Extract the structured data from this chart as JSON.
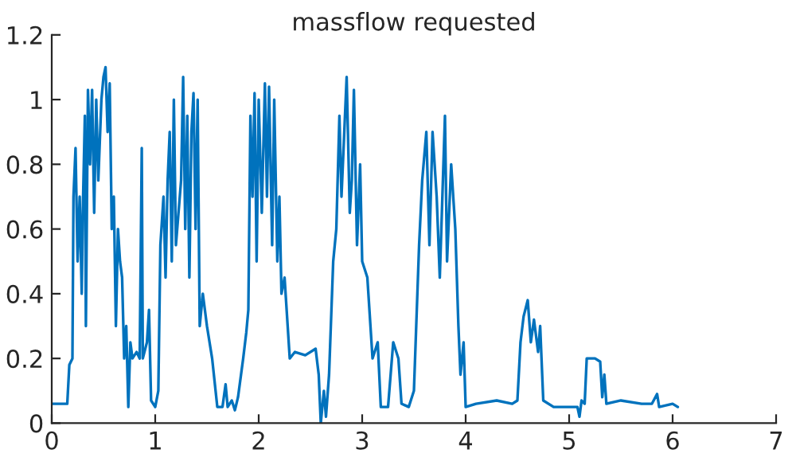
{
  "chart_data": {
    "type": "line",
    "title": "massflow requested",
    "x": [
      0,
      0.15,
      0.17,
      0.2,
      0.21,
      0.23,
      0.25,
      0.27,
      0.29,
      0.3,
      0.32,
      0.33,
      0.35,
      0.37,
      0.39,
      0.41,
      0.43,
      0.45,
      0.48,
      0.5,
      0.52,
      0.54,
      0.56,
      0.58,
      0.6,
      0.62,
      0.64,
      0.66,
      0.68,
      0.7,
      0.72,
      0.74,
      0.76,
      0.78,
      0.82,
      0.85,
      0.87,
      0.88,
      0.92,
      0.94,
      0.96,
      1.0,
      1.03,
      1.05,
      1.08,
      1.1,
      1.12,
      1.14,
      1.16,
      1.18,
      1.2,
      1.25,
      1.27,
      1.29,
      1.31,
      1.33,
      1.35,
      1.37,
      1.39,
      1.41,
      1.43,
      1.46,
      1.5,
      1.55,
      1.6,
      1.65,
      1.68,
      1.7,
      1.74,
      1.77,
      1.8,
      1.85,
      1.88,
      1.9,
      1.92,
      1.94,
      1.96,
      1.98,
      2.0,
      2.03,
      2.06,
      2.08,
      2.1,
      2.13,
      2.15,
      2.18,
      2.2,
      2.22,
      2.25,
      2.3,
      2.35,
      2.45,
      2.55,
      2.58,
      2.6,
      2.63,
      2.65,
      2.68,
      2.72,
      2.75,
      2.78,
      2.8,
      2.85,
      2.88,
      2.9,
      2.92,
      2.95,
      2.98,
      3.0,
      3.05,
      3.1,
      3.15,
      3.18,
      3.25,
      3.3,
      3.35,
      3.38,
      3.45,
      3.5,
      3.55,
      3.58,
      3.62,
      3.65,
      3.68,
      3.72,
      3.75,
      3.8,
      3.82,
      3.86,
      3.9,
      3.93,
      3.95,
      3.98,
      4.0,
      4.1,
      4.3,
      4.45,
      4.5,
      4.53,
      4.56,
      4.6,
      4.63,
      4.66,
      4.7,
      4.72,
      4.75,
      4.85,
      5.0,
      5.08,
      5.1,
      5.12,
      5.15,
      5.17,
      5.25,
      5.3,
      5.32,
      5.34,
      5.36,
      5.5,
      5.7,
      5.8,
      5.85,
      5.87,
      6.0,
      6.05
    ],
    "series": [
      {
        "color": "#0072bd",
        "values": [
          0.06,
          0.06,
          0.18,
          0.2,
          0.7,
          0.85,
          0.5,
          0.7,
          0.4,
          0.65,
          0.95,
          0.3,
          1.03,
          0.8,
          1.03,
          0.65,
          1.0,
          0.75,
          1.0,
          1.07,
          1.1,
          0.9,
          1.05,
          0.6,
          0.7,
          0.3,
          0.6,
          0.5,
          0.45,
          0.2,
          0.3,
          0.05,
          0.25,
          0.2,
          0.22,
          0.2,
          0.85,
          0.2,
          0.25,
          0.35,
          0.07,
          0.05,
          0.1,
          0.55,
          0.7,
          0.45,
          0.75,
          0.9,
          0.5,
          1.0,
          0.55,
          0.75,
          1.07,
          0.6,
          0.95,
          0.45,
          0.9,
          1.02,
          0.6,
          1.0,
          0.3,
          0.4,
          0.3,
          0.2,
          0.05,
          0.05,
          0.12,
          0.05,
          0.07,
          0.04,
          0.08,
          0.2,
          0.28,
          0.35,
          0.95,
          0.7,
          1.02,
          0.5,
          1.0,
          0.65,
          1.05,
          0.7,
          1.04,
          0.55,
          1.0,
          0.5,
          0.7,
          0.4,
          0.45,
          0.2,
          0.22,
          0.21,
          0.23,
          0.15,
          0.0,
          0.1,
          0.02,
          0.15,
          0.5,
          0.6,
          0.95,
          0.7,
          1.07,
          0.65,
          0.75,
          1.03,
          0.55,
          0.8,
          0.5,
          0.45,
          0.2,
          0.25,
          0.05,
          0.05,
          0.25,
          0.2,
          0.06,
          0.05,
          0.1,
          0.55,
          0.75,
          0.9,
          0.55,
          0.9,
          0.7,
          0.45,
          0.95,
          0.5,
          0.8,
          0.6,
          0.3,
          0.15,
          0.25,
          0.05,
          0.06,
          0.07,
          0.06,
          0.07,
          0.25,
          0.33,
          0.38,
          0.25,
          0.32,
          0.22,
          0.3,
          0.07,
          0.05,
          0.05,
          0.05,
          0.02,
          0.07,
          0.06,
          0.2,
          0.2,
          0.19,
          0.08,
          0.15,
          0.06,
          0.07,
          0.06,
          0.06,
          0.09,
          0.05,
          0.06,
          0.05
        ]
      }
    ],
    "xlim": [
      0,
      7
    ],
    "xticks": [
      0,
      1,
      2,
      3,
      4,
      5,
      6,
      7
    ],
    "ylim": [
      0,
      1.2
    ],
    "yticks": [
      0,
      0.2,
      0.4,
      0.6,
      0.8,
      1,
      1.2
    ],
    "grid": false,
    "legend": false
  }
}
